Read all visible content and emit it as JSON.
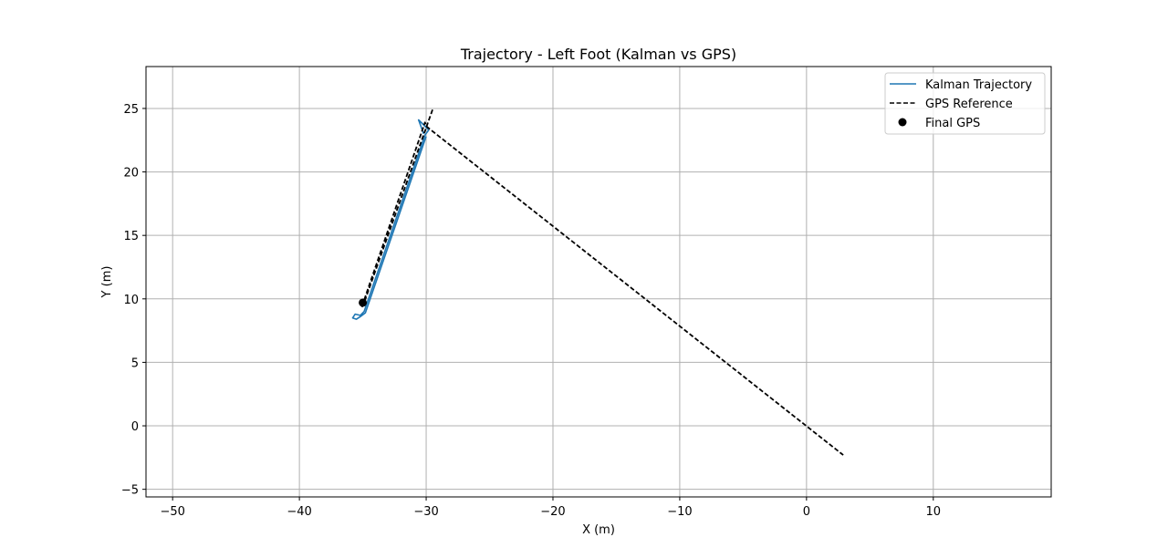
{
  "chart_data": {
    "type": "line",
    "title": "Trajectory - Left Foot (Kalman vs GPS)",
    "xlabel": "X (m)",
    "ylabel": "Y (m)",
    "xlim": [
      -52.1,
      19.3
    ],
    "ylim": [
      -5.6,
      28.3
    ],
    "xticks": [
      -50,
      -40,
      -30,
      -20,
      -10,
      0,
      10
    ],
    "xtick_labels": [
      "−50",
      "−40",
      "−30",
      "−20",
      "−10",
      "0",
      "10"
    ],
    "yticks": [
      -5,
      0,
      5,
      10,
      15,
      20,
      25
    ],
    "ytick_labels": [
      "−5",
      "0",
      "5",
      "10",
      "15",
      "20",
      "25"
    ],
    "grid": true,
    "legend_position": "top-right",
    "series": [
      {
        "name": "Kalman Trajectory",
        "style": "solid",
        "color": "#1f77b4",
        "points": [
          [
            -30.2,
            23.0
          ],
          [
            -30.6,
            24.1
          ],
          [
            -30.2,
            23.7
          ],
          [
            -29.8,
            23.3
          ],
          [
            -30.1,
            22.9
          ],
          [
            -34.9,
            9.0
          ],
          [
            -35.2,
            8.7
          ],
          [
            -35.6,
            8.8
          ],
          [
            -35.8,
            8.5
          ],
          [
            -35.5,
            8.4
          ],
          [
            -35.2,
            8.6
          ],
          [
            -34.8,
            8.9
          ],
          [
            -30.0,
            22.8
          ]
        ]
      },
      {
        "name": "GPS Reference",
        "style": "dashed",
        "color": "#000000",
        "points": [
          [
            -29.5,
            24.9
          ],
          [
            -34.9,
            9.7
          ],
          [
            -35.1,
            9.3
          ],
          [
            -30.1,
            23.9
          ],
          [
            -30.0,
            23.6
          ],
          [
            2.9,
            -2.3
          ]
        ]
      }
    ],
    "markers": [
      {
        "name": "Final GPS",
        "color": "#000000",
        "x": -35.0,
        "y": 9.7
      }
    ]
  }
}
